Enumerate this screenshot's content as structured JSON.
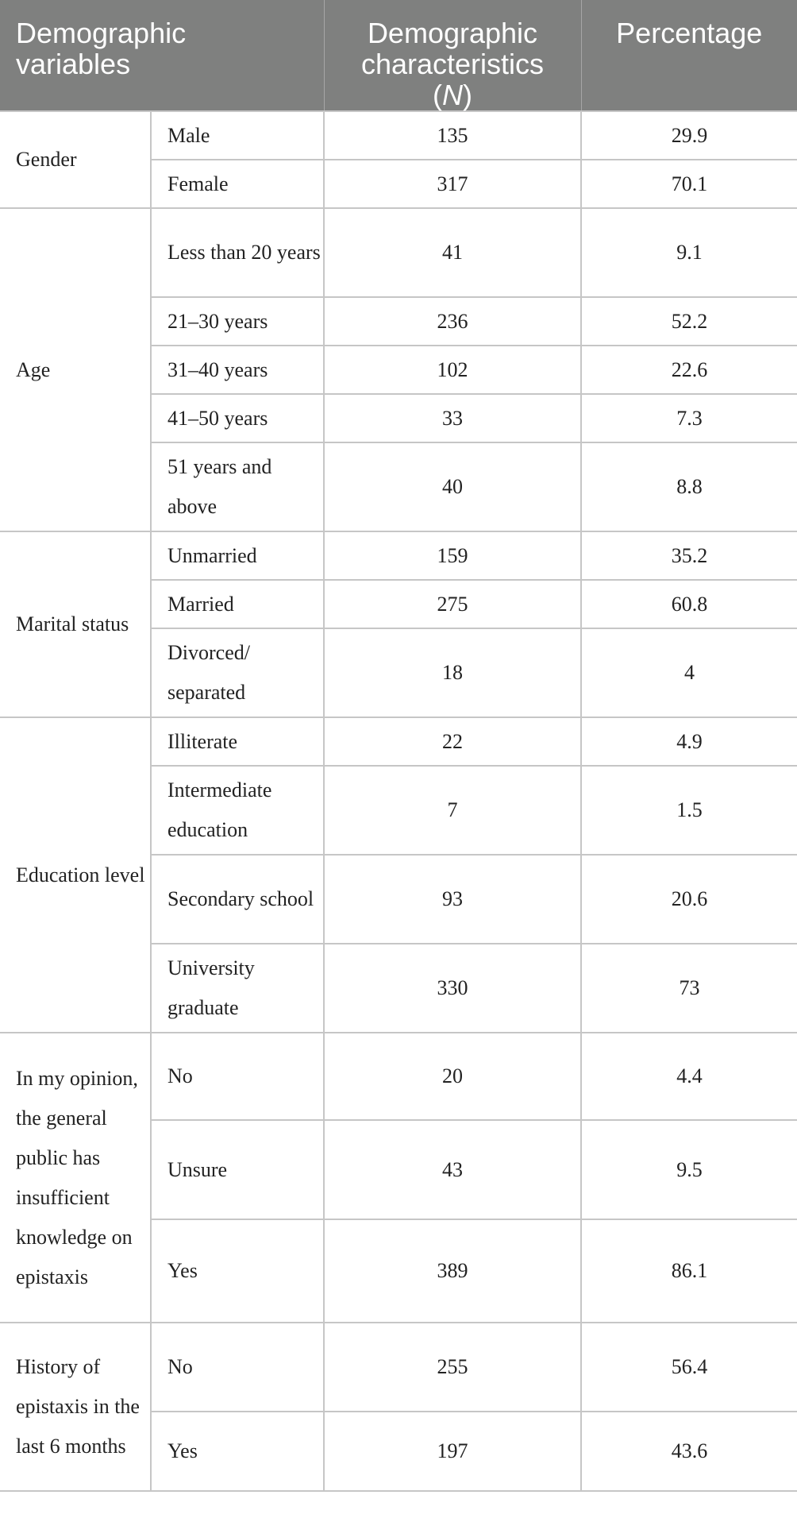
{
  "header": {
    "col1": "Demographic variables",
    "col2_line1": "Demographic characteristics",
    "col2_paren_open": "(",
    "col2_n": "N",
    "col2_paren_close": ")",
    "col3": "Percentage"
  },
  "groups": [
    {
      "label": "Gender",
      "rows": [
        {
          "sub": "Male",
          "n": "135",
          "pct": "29.9"
        },
        {
          "sub": "Female",
          "n": "317",
          "pct": "70.1"
        }
      ]
    },
    {
      "label": "Age",
      "rows": [
        {
          "sub": "Less than 20 years",
          "n": "41",
          "pct": "9.1"
        },
        {
          "sub": "21–30 years",
          "n": "236",
          "pct": "52.2"
        },
        {
          "sub": "31–40 years",
          "n": "102",
          "pct": "22.6"
        },
        {
          "sub": "41–50 years",
          "n": "33",
          "pct": "7.3"
        },
        {
          "sub": "51 years and above",
          "n": "40",
          "pct": "8.8"
        }
      ]
    },
    {
      "label": "Marital status",
      "rows": [
        {
          "sub": "Unmarried",
          "n": "159",
          "pct": "35.2"
        },
        {
          "sub": "Married",
          "n": "275",
          "pct": "60.8"
        },
        {
          "sub": "Divorced/ separated",
          "n": "18",
          "pct": "4"
        }
      ]
    },
    {
      "label": "Education level",
      "rows": [
        {
          "sub": "Illiterate",
          "n": "22",
          "pct": "4.9"
        },
        {
          "sub": "Intermediate education",
          "n": "7",
          "pct": "1.5"
        },
        {
          "sub": "Secondary school",
          "n": "93",
          "pct": "20.6"
        },
        {
          "sub": "University graduate",
          "n": "330",
          "pct": "73"
        }
      ]
    },
    {
      "label": "In my opinion, the general public has insufficient knowledge on epistaxis",
      "rows": [
        {
          "sub": "No",
          "n": "20",
          "pct": "4.4"
        },
        {
          "sub": "Unsure",
          "n": "43",
          "pct": "9.5"
        },
        {
          "sub": "Yes",
          "n": "389",
          "pct": "86.1"
        }
      ]
    },
    {
      "label": "History of epistaxis in the last 6 months",
      "rows": [
        {
          "sub": "No",
          "n": "255",
          "pct": "56.4"
        },
        {
          "sub": "Yes",
          "n": "197",
          "pct": "43.6"
        }
      ]
    }
  ]
}
